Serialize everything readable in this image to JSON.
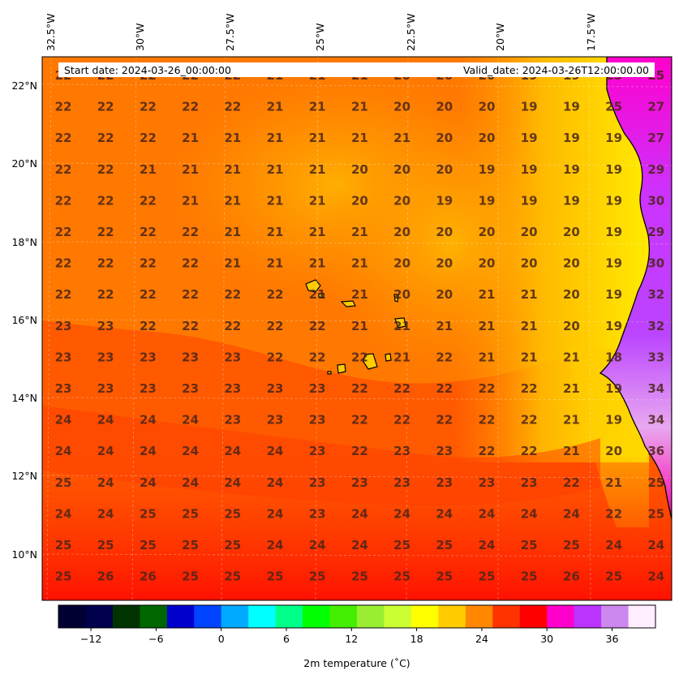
{
  "header": {
    "start_date": "Start date: 2024-03-26_00:00:00",
    "valid_date": "Valid_date: 2024-03-26T12:00:00.00"
  },
  "longitude_labels": [
    "32.5°W",
    "30°W",
    "27.5°W",
    "25°W",
    "22.5°W",
    "20°W",
    "17.5°W"
  ],
  "latitude_labels": [
    "22°N",
    "20°N",
    "18°N",
    "16°N",
    "14°N",
    "12°N",
    "10°N"
  ],
  "colorbar": {
    "label": "2m temperature ($^\\circ$C)",
    "label_display": "2m temperature (˚C)",
    "min": -15,
    "max": 40,
    "tick_values": [
      -12,
      -6,
      0,
      6,
      12,
      18,
      24,
      30,
      36
    ],
    "tick_labels": [
      "−12",
      "−6",
      "0",
      "6",
      "12",
      "18",
      "24",
      "30",
      "36"
    ],
    "colors": [
      "#000033",
      "#00004d",
      "#003300",
      "#006600",
      "#0000cc",
      "#0044ff",
      "#00aaff",
      "#00ffff",
      "#00ff88",
      "#00ff00",
      "#44ee00",
      "#99ee33",
      "#ccff33",
      "#ffff00",
      "#ffcc00",
      "#ff8800",
      "#ff3300",
      "#ff0000",
      "#ff00cc",
      "#bb33ff",
      "#cc88ee",
      "#ffeeff"
    ]
  },
  "grid_values": [
    [
      "22",
      "22",
      "22",
      "22",
      "22",
      "21",
      "21",
      "21",
      "20",
      "20",
      "20",
      "19",
      "19",
      "25",
      "25"
    ],
    [
      "22",
      "22",
      "22",
      "22",
      "22",
      "21",
      "21",
      "21",
      "20",
      "20",
      "20",
      "19",
      "19",
      "25",
      "27"
    ],
    [
      "22",
      "22",
      "22",
      "21",
      "21",
      "21",
      "21",
      "21",
      "21",
      "20",
      "20",
      "19",
      "19",
      "19",
      "27"
    ],
    [
      "22",
      "22",
      "21",
      "21",
      "21",
      "21",
      "21",
      "20",
      "20",
      "20",
      "19",
      "19",
      "19",
      "19",
      "29"
    ],
    [
      "22",
      "22",
      "22",
      "21",
      "21",
      "21",
      "21",
      "20",
      "20",
      "19",
      "19",
      "19",
      "19",
      "19",
      "30"
    ],
    [
      "22",
      "22",
      "22",
      "22",
      "21",
      "21",
      "21",
      "21",
      "20",
      "20",
      "20",
      "20",
      "20",
      "19",
      "29"
    ],
    [
      "22",
      "22",
      "22",
      "22",
      "21",
      "21",
      "21",
      "21",
      "20",
      "20",
      "20",
      "20",
      "20",
      "19",
      "30"
    ],
    [
      "22",
      "22",
      "22",
      "22",
      "22",
      "22",
      "21",
      "21",
      "20",
      "20",
      "21",
      "21",
      "20",
      "19",
      "32"
    ],
    [
      "23",
      "23",
      "22",
      "22",
      "22",
      "22",
      "22",
      "21",
      "21",
      "21",
      "21",
      "21",
      "20",
      "19",
      "32"
    ],
    [
      "23",
      "23",
      "23",
      "23",
      "23",
      "22",
      "22",
      "22",
      "21",
      "22",
      "21",
      "21",
      "21",
      "18",
      "33"
    ],
    [
      "23",
      "23",
      "23",
      "23",
      "23",
      "23",
      "23",
      "22",
      "22",
      "22",
      "22",
      "22",
      "21",
      "19",
      "34"
    ],
    [
      "24",
      "24",
      "24",
      "24",
      "23",
      "23",
      "23",
      "22",
      "22",
      "22",
      "22",
      "22",
      "21",
      "19",
      "34"
    ],
    [
      "24",
      "24",
      "24",
      "24",
      "24",
      "24",
      "23",
      "22",
      "23",
      "23",
      "22",
      "22",
      "21",
      "20",
      "36"
    ],
    [
      "25",
      "24",
      "24",
      "24",
      "24",
      "24",
      "23",
      "23",
      "23",
      "23",
      "23",
      "23",
      "22",
      "21",
      "25"
    ],
    [
      "24",
      "24",
      "25",
      "25",
      "25",
      "24",
      "23",
      "24",
      "24",
      "24",
      "24",
      "24",
      "24",
      "22",
      "25"
    ],
    [
      "25",
      "25",
      "25",
      "25",
      "25",
      "24",
      "24",
      "24",
      "25",
      "25",
      "24",
      "25",
      "25",
      "24",
      "24"
    ],
    [
      "25",
      "26",
      "26",
      "25",
      "25",
      "25",
      "25",
      "25",
      "25",
      "25",
      "25",
      "25",
      "26",
      "25",
      "24"
    ]
  ]
}
